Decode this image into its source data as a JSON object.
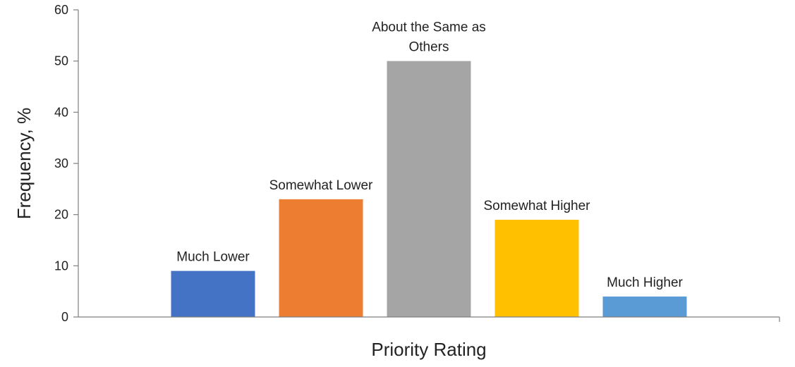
{
  "chart_data": {
    "type": "bar",
    "title": "",
    "xlabel": "Priority Rating",
    "ylabel": "Frequency, %",
    "ylim": [
      0,
      60
    ],
    "yticks": [
      0,
      10,
      20,
      30,
      40,
      50,
      60
    ],
    "grid": false,
    "legend": "none",
    "categories": [
      "Much Lower",
      "Somewhat Lower",
      "About the Same as Others",
      "Somewhat Higher",
      "Much Higher"
    ],
    "category_label_lines": [
      [
        "Much Lower"
      ],
      [
        "Somewhat Lower"
      ],
      [
        "About the Same as",
        "Others"
      ],
      [
        "Somewhat Higher"
      ],
      [
        "Much Higher"
      ]
    ],
    "values": [
      9,
      23,
      50,
      19,
      4
    ],
    "colors": [
      "#4472c4",
      "#ed7d31",
      "#a5a5a5",
      "#ffc000",
      "#5b9bd5"
    ]
  }
}
